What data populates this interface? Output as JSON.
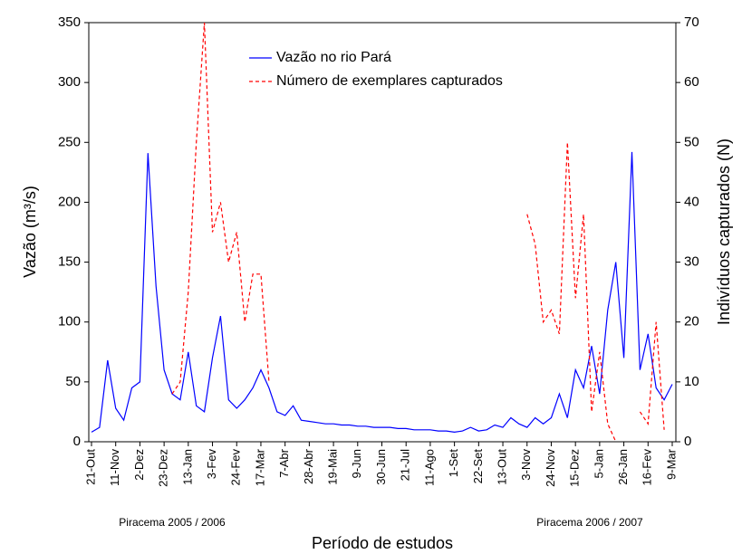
{
  "chart_data": {
    "type": "line",
    "xlabel": "Período de estudos",
    "ylabel": "Vazão (m³/s)",
    "y2label": "Indivíduos capturados (N)",
    "annotations": [
      "Piracema 2005 / 2006",
      "Piracema 2006 / 2007"
    ],
    "categories": [
      "21-Out",
      null,
      null,
      "11-Nov",
      null,
      null,
      "2-Dez",
      null,
      null,
      "23-Dez",
      null,
      null,
      "13-Jan",
      null,
      null,
      "3-Fev",
      null,
      null,
      "24-Fev",
      null,
      null,
      "17-Mar",
      null,
      null,
      "7-Abr",
      null,
      null,
      "28-Abr",
      null,
      null,
      "19-Mai",
      null,
      null,
      "9-Jun",
      null,
      null,
      "30-Jun",
      null,
      null,
      "21-Jul",
      null,
      null,
      "11-Ago",
      null,
      null,
      "1-Set",
      null,
      null,
      "22-Set",
      null,
      null,
      "13-Out",
      null,
      null,
      "3-Nov",
      null,
      null,
      "24-Nov",
      null,
      null,
      "15-Dez",
      null,
      null,
      "5-Jan",
      null,
      null,
      "26-Jan",
      null,
      null,
      "16-Fev",
      null,
      null,
      "9-Mar"
    ],
    "series": [
      {
        "name": "Vazão no rio Pará",
        "color": "#0000ff",
        "axis": "y",
        "values": [
          8,
          12,
          68,
          28,
          18,
          45,
          50,
          241,
          130,
          60,
          40,
          35,
          75,
          30,
          25,
          70,
          105,
          35,
          28,
          35,
          45,
          60,
          45,
          25,
          22,
          30,
          18,
          17,
          16,
          15,
          15,
          14,
          14,
          13,
          13,
          12,
          12,
          12,
          11,
          11,
          10,
          10,
          10,
          9,
          9,
          8,
          9,
          12,
          9,
          10,
          14,
          12,
          20,
          15,
          12,
          20,
          15,
          20,
          40,
          20,
          60,
          45,
          80,
          40,
          110,
          150,
          70,
          242,
          60,
          90,
          45,
          35,
          48
        ]
      },
      {
        "name": "Número de exemplares capturados",
        "color": "#ff0000",
        "axis": "y2",
        "dashed": true,
        "values": [
          null,
          null,
          null,
          null,
          null,
          null,
          null,
          null,
          null,
          null,
          8,
          10,
          25,
          50,
          70,
          35,
          40,
          30,
          35,
          20,
          28,
          28,
          10,
          null,
          null,
          null,
          null,
          null,
          null,
          null,
          null,
          null,
          null,
          null,
          null,
          null,
          null,
          null,
          null,
          null,
          null,
          null,
          null,
          null,
          null,
          null,
          null,
          null,
          null,
          null,
          null,
          null,
          null,
          null,
          38,
          33,
          20,
          22,
          18,
          50,
          24,
          38,
          5,
          15,
          3,
          0,
          null,
          null,
          5,
          3,
          20,
          2,
          null
        ]
      }
    ],
    "ylim": [
      0,
      350
    ],
    "yticks": [
      0,
      50,
      100,
      150,
      200,
      250,
      300,
      350
    ],
    "y2lim": [
      0,
      70
    ],
    "y2ticks": [
      0,
      10,
      20,
      30,
      40,
      50,
      60,
      70
    ]
  }
}
